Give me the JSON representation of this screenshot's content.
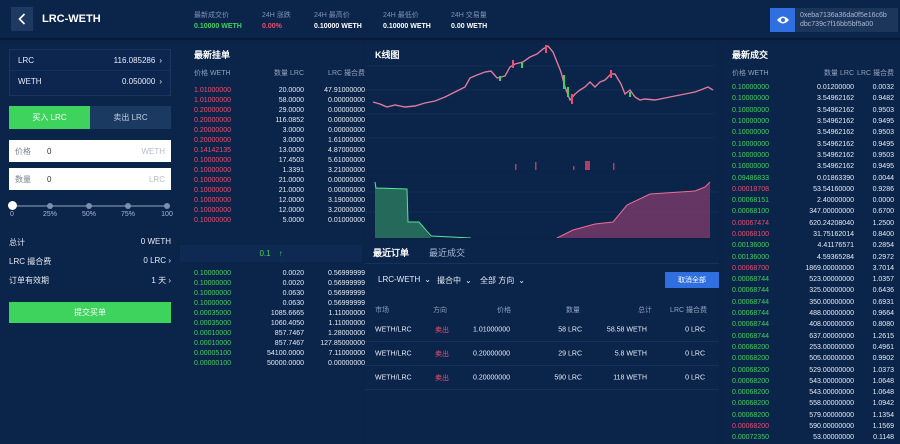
{
  "header": {
    "pair": "LRC-WETH",
    "stats": [
      {
        "label": "最新成交价",
        "value": "0.10000 WETH",
        "color": "green"
      },
      {
        "label": "24H 涨跌",
        "value": "0.00%",
        "color": "red"
      },
      {
        "label": "24H 最高价",
        "value": "0.10000 WETH",
        "color": "white"
      },
      {
        "label": "24H 最低价",
        "value": "0.10000 WETH",
        "color": "white"
      },
      {
        "label": "24H 交易量",
        "value": "0.00 WETH",
        "color": "white"
      }
    ],
    "address_line1": "0xeba7136a36da0f5e16c6b",
    "address_line2": "dbc739c7f16bb5bf5a00"
  },
  "left": {
    "balances": [
      {
        "token": "LRC",
        "amount": "116.085286"
      },
      {
        "token": "WETH",
        "amount": "0.050000"
      }
    ],
    "buy_tab": "买入 LRC",
    "sell_tab": "卖出 LRC",
    "price": {
      "label": "价格",
      "value": "0",
      "unit": "WETH"
    },
    "amount": {
      "label": "数量",
      "value": "0",
      "unit": "LRC"
    },
    "slider_ticks": [
      "0",
      "25%",
      "50%",
      "75%",
      "100"
    ],
    "total": {
      "label": "总计",
      "value": "0 WETH"
    },
    "fee": {
      "label": "LRC 撮合费",
      "value": "0 LRC"
    },
    "validity": {
      "label": "订单有效期",
      "value": "1 天"
    },
    "submit": "提交买单"
  },
  "orderbook": {
    "title": "最新挂单",
    "headers": [
      "价格 WETH",
      "数量 LRC",
      "LRC 撮合费"
    ],
    "asks": [
      [
        "1.01000000",
        "20.0000",
        "47.91000000"
      ],
      [
        "1.01000000",
        "58.0000",
        "0.00000000"
      ],
      [
        "0.20000000",
        "29.0000",
        "0.00000000"
      ],
      [
        "0.20000000",
        "116.0852",
        "0.00000000"
      ],
      [
        "0.20000000",
        "3.0000",
        "0.00000000"
      ],
      [
        "0.20000000",
        "3.0000",
        "1.61000000"
      ],
      [
        "0.14142135",
        "13.0000",
        "4.87000000"
      ],
      [
        "0.10000000",
        "17.4503",
        "5.61000000"
      ],
      [
        "0.10000000",
        "1.3391",
        "3.21000000"
      ],
      [
        "0.10000000",
        "21.0000",
        "0.00000000"
      ],
      [
        "0.10000000",
        "21.0000",
        "0.00000000"
      ],
      [
        "0.10000000",
        "12.0000",
        "3.19000000"
      ],
      [
        "0.10000000",
        "12.0000",
        "3.20000000"
      ],
      [
        "0.10000000",
        "5.0000",
        "0.01000000"
      ]
    ],
    "mid_price": "0.1",
    "mid_arrow": "↑",
    "bids": [
      [
        "0.10000000",
        "0.0020",
        "0.56999999"
      ],
      [
        "0.10000000",
        "0.0020",
        "0.56999999"
      ],
      [
        "0.10000000",
        "0.0630",
        "0.56999999"
      ],
      [
        "0.10000000",
        "0.0630",
        "0.56999999"
      ],
      [
        "0.00035000",
        "1085.6665",
        "1.11000000"
      ],
      [
        "0.00035000",
        "1060.4050",
        "1.11000000"
      ],
      [
        "0.00010000",
        "857.7467",
        "1.28000000"
      ],
      [
        "0.00010000",
        "857.7467",
        "127.85000000"
      ],
      [
        "0.00005100",
        "54100.0000",
        "7.11000000"
      ],
      [
        "0.00000100",
        "50000.0000",
        "0.00000000"
      ]
    ]
  },
  "chart": {
    "title": "K线图"
  },
  "orders": {
    "tabs": [
      "最近订单",
      "最近成交"
    ],
    "filters": [
      "LRC-WETH",
      "撮合中",
      "全部 方向"
    ],
    "cancel_all": "取消全部",
    "headers": [
      "市场",
      "方向",
      "价格",
      "数量",
      "总计",
      "LRC 撮合费"
    ],
    "rows": [
      [
        "WETH/LRC",
        "卖出",
        "1.01000000",
        "58 LRC",
        "58.58 WETH",
        "0 LRC"
      ],
      [
        "WETH/LRC",
        "卖出",
        "0.20000000",
        "29 LRC",
        "5.8 WETH",
        "0 LRC"
      ],
      [
        "WETH/LRC",
        "卖出",
        "0.20000000",
        "590 LRC",
        "118 WETH",
        "0 LRC"
      ]
    ]
  },
  "trades": {
    "title": "最新成交",
    "headers": [
      "价格 WETH",
      "数量 LRC",
      "LRC 撮合费"
    ],
    "rows": [
      [
        "0.10000000",
        "0.01200000",
        "0.0032",
        "g"
      ],
      [
        "0.10000000",
        "3.54962162",
        "0.9482",
        "g"
      ],
      [
        "0.10000000",
        "3.54962162",
        "0.9503",
        "g"
      ],
      [
        "0.10000000",
        "3.54962162",
        "0.9495",
        "g"
      ],
      [
        "0.10000000",
        "3.54962162",
        "0.9503",
        "g"
      ],
      [
        "0.10000000",
        "3.54962162",
        "0.9495",
        "g"
      ],
      [
        "0.10000000",
        "3.54962162",
        "0.9503",
        "g"
      ],
      [
        "0.10000000",
        "3.54962162",
        "0.9495",
        "g"
      ],
      [
        "0.09486833",
        "0.01863390",
        "0.0044",
        "g"
      ],
      [
        "0.00018708",
        "53.54160000",
        "0.9286",
        "r"
      ],
      [
        "0.00068151",
        "2.40000000",
        "0.0000",
        "g"
      ],
      [
        "0.00068100",
        "347.00000000",
        "0.6700",
        "g"
      ],
      [
        "0.00067474",
        "620.24208040",
        "1.2500",
        "r"
      ],
      [
        "0.00068100",
        "31.75162014",
        "0.8400",
        "r"
      ],
      [
        "0.00136000",
        "4.41176571",
        "0.2854",
        "g"
      ],
      [
        "0.00136000",
        "4.59365284",
        "0.2972",
        "g"
      ],
      [
        "0.00068700",
        "1869.00000000",
        "3.7014",
        "r"
      ],
      [
        "0.00068744",
        "523.00000000",
        "1.0357",
        "g"
      ],
      [
        "0.00068744",
        "325.00000000",
        "0.6436",
        "g"
      ],
      [
        "0.00068744",
        "350.00000000",
        "0.6931",
        "g"
      ],
      [
        "0.00068744",
        "488.00000000",
        "0.9664",
        "g"
      ],
      [
        "0.00068744",
        "408.00000000",
        "0.8080",
        "g"
      ],
      [
        "0.00068744",
        "637.00000000",
        "1.2615",
        "g"
      ],
      [
        "0.00068200",
        "253.00000000",
        "0.4961",
        "g"
      ],
      [
        "0.00068200",
        "505.00000000",
        "0.9902",
        "g"
      ],
      [
        "0.00068200",
        "529.00000000",
        "1.0373",
        "g"
      ],
      [
        "0.00068200",
        "543.00000000",
        "1.0648",
        "g"
      ],
      [
        "0.00068200",
        "543.00000000",
        "1.0648",
        "g"
      ],
      [
        "0.00068200",
        "558.00000000",
        "1.0942",
        "g"
      ],
      [
        "0.00068200",
        "579.00000000",
        "1.1354",
        "g"
      ],
      [
        "0.00068200",
        "590.00000000",
        "1.1569",
        "r"
      ],
      [
        "0.00072350",
        "53.00000000",
        "0.1148",
        "g"
      ]
    ]
  },
  "colors": {
    "green": "#3fd163",
    "red": "#ec4e6e",
    "blue": "#2f6fe0",
    "bg": "#0b2449"
  }
}
